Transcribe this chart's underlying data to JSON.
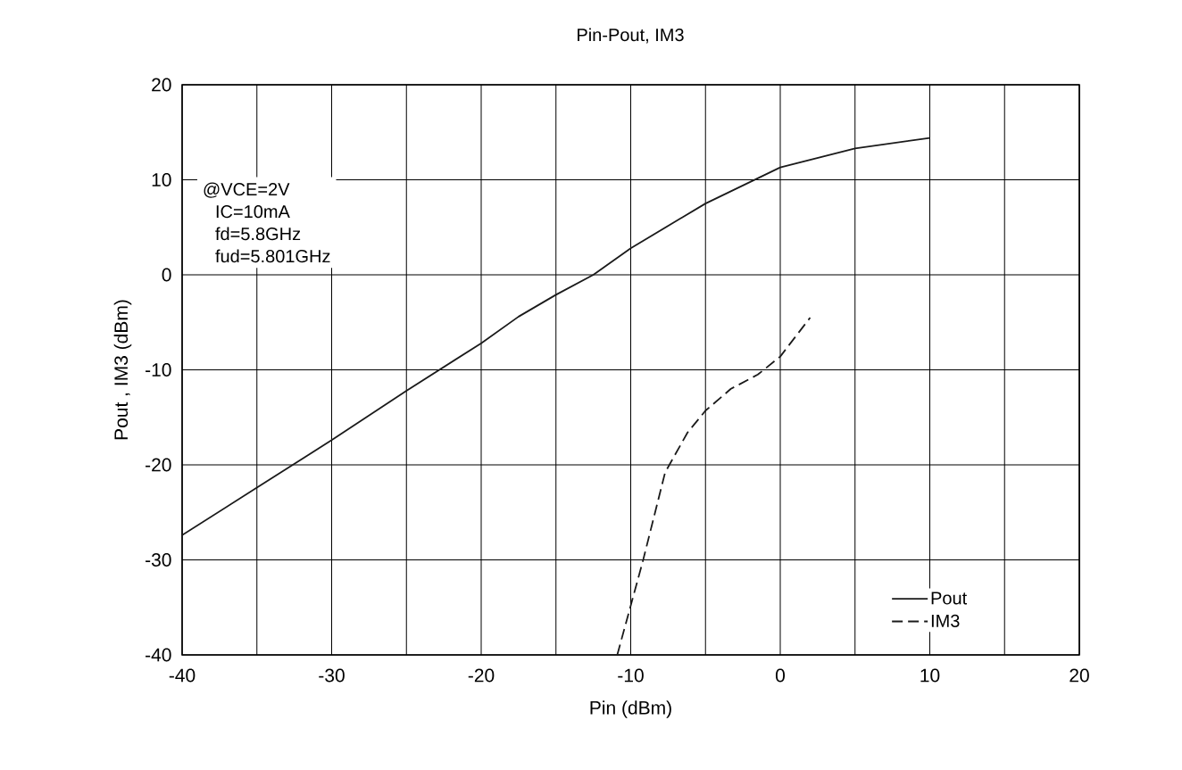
{
  "chart_data": {
    "type": "line",
    "title": "Pin-Pout, IM3",
    "xlabel": "Pin (dBm)",
    "ylabel": "Pout , IM3 (dBm)",
    "annotations": [
      "@VCE=2V",
      "IC=10mA",
      "fd=5.8GHz",
      "fud=5.801GHz"
    ],
    "xlim": [
      -40,
      20
    ],
    "ylim": [
      -40,
      20
    ],
    "xticks": [
      -40,
      {
        "value": -35,
        "label": null
      },
      -30,
      {
        "value": -25,
        "label": null
      },
      -20,
      {
        "value": -15,
        "label": null
      },
      -10,
      {
        "value": -5,
        "label": null
      },
      0,
      {
        "value": 5,
        "label": null
      },
      10,
      {
        "value": 15,
        "label": null
      },
      20
    ],
    "yticks": [
      -40,
      -30,
      -20,
      -10,
      0,
      10,
      20
    ],
    "grid": true,
    "legend": "bottom right",
    "marker": "none",
    "series": [
      {
        "name": "Pout",
        "color": "#1a1a1a",
        "line_style": "solid",
        "x": [
          -40,
          -35,
          -30,
          -25,
          -20,
          -17.5,
          -15,
          -12.5,
          -10,
          -5,
          0,
          5,
          10
        ],
        "values": [
          -27.4,
          -22.4,
          -17.4,
          -12.2,
          -7.2,
          -4.4,
          -2.1,
          0,
          2.8,
          7.5,
          11.3,
          13.3,
          14.4
        ]
      },
      {
        "name": "IM3",
        "color": "#1a1a1a",
        "line_style": "dashed",
        "x": [
          -10.9,
          -9.2,
          -7.7,
          -6.2,
          -5,
          -3.3,
          -1.5,
          0,
          2
        ],
        "values": [
          -40,
          -30.2,
          -20.8,
          -16.6,
          -14.3,
          -12,
          -10.5,
          -8.6,
          -4.5
        ]
      }
    ]
  }
}
